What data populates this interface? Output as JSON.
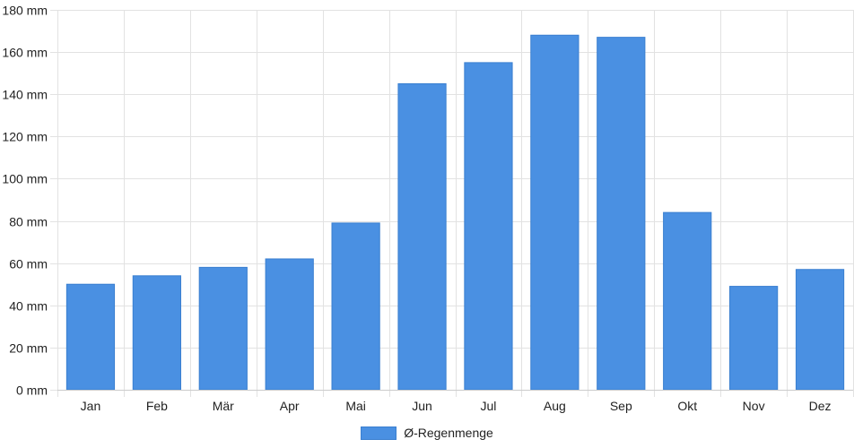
{
  "chart_data": {
    "type": "bar",
    "categories": [
      "Jan",
      "Feb",
      "Mär",
      "Apr",
      "Mai",
      "Jun",
      "Jul",
      "Aug",
      "Sep",
      "Okt",
      "Nov",
      "Dez"
    ],
    "series": [
      {
        "name": "Ø-Regenmenge",
        "values": [
          50,
          54,
          58,
          62,
          79,
          145,
          155,
          168,
          167,
          84,
          49,
          57
        ],
        "color": "#4a90e2",
        "border_color": "#3a7fd0"
      }
    ],
    "y_tick_labels": [
      "0 mm",
      "20 mm",
      "40 mm",
      "60 mm",
      "80 mm",
      "100 mm",
      "120 mm",
      "140 mm",
      "160 mm",
      "180 mm"
    ],
    "ylim": [
      0,
      180
    ],
    "y_step": 20,
    "y_unit": "mm",
    "grid": true,
    "grid_color": "#e2e2e2",
    "legend_position": "bottom-center"
  }
}
